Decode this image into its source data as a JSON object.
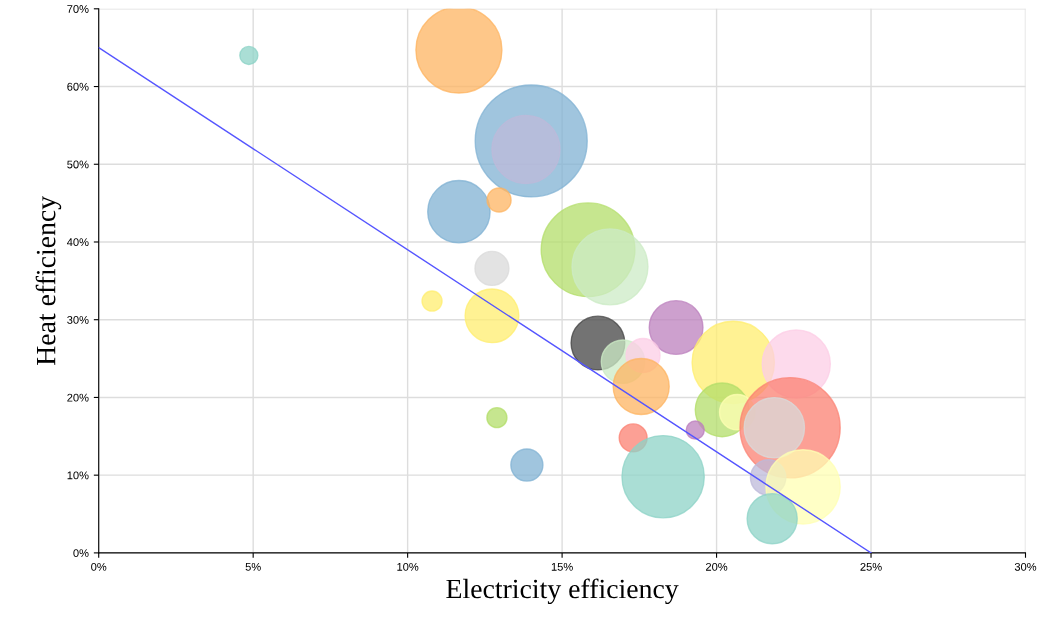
{
  "chart_data": {
    "type": "bubble",
    "xlabel": "Electricity efficiency",
    "ylabel": "Heat efficiency",
    "xlim": [
      0,
      30
    ],
    "ylim": [
      0,
      70
    ],
    "xticks": [
      {
        "value": 0,
        "label": "0%"
      },
      {
        "value": 5,
        "label": "5%"
      },
      {
        "value": 10,
        "label": "10%"
      },
      {
        "value": 15,
        "label": "15%"
      },
      {
        "value": 20,
        "label": "20%"
      },
      {
        "value": 25,
        "label": "25%"
      },
      {
        "value": 30,
        "label": "30%"
      }
    ],
    "yticks": [
      {
        "value": 0,
        "label": "0%"
      },
      {
        "value": 10,
        "label": "10%"
      },
      {
        "value": 20,
        "label": "20%"
      },
      {
        "value": 30,
        "label": "30%"
      },
      {
        "value": 40,
        "label": "40%"
      },
      {
        "value": 50,
        "label": "50%"
      },
      {
        "value": 60,
        "label": "60%"
      },
      {
        "value": 70,
        "label": "70%"
      }
    ],
    "grid": true,
    "legend": false,
    "series": [
      {
        "x": [
          4.86,
          11.66,
          14.0,
          13.83,
          11.66,
          12.96,
          15.84,
          16.55,
          12.73,
          10.79,
          12.73,
          16.16,
          18.69,
          20.54,
          22.58,
          16.97,
          17.62,
          17.56,
          20.18,
          20.67,
          22.38,
          21.87,
          12.89,
          17.3,
          19.31,
          13.86,
          18.27,
          21.67,
          22.8,
          21.8
        ],
        "values": [
          64.0,
          64.7,
          53.0,
          51.9,
          43.9,
          45.4,
          39.0,
          36.8,
          36.6,
          32.4,
          30.5,
          27.0,
          29.0,
          24.5,
          24.3,
          24.6,
          25.4,
          21.4,
          18.4,
          18.1,
          16.1,
          16.1,
          17.4,
          14.8,
          15.8,
          11.3,
          9.8,
          9.7,
          8.5,
          4.4
        ],
        "sizes": [
          0.026,
          0.59,
          1,
          0.37,
          0.31,
          0.046,
          0.7,
          0.46,
          0.092,
          0.032,
          0.23,
          0.23,
          0.23,
          0.54,
          0.37,
          0.15,
          0.092,
          0.25,
          0.23,
          0.1,
          0.8,
          0.29,
          0.032,
          0.062,
          0.026,
          0.082,
          0.54,
          0.1,
          0.44,
          0.2
        ],
        "colors": [
          "#8dd3c7",
          "#fdb462",
          "#80b1d3",
          "#bebada",
          "#80b1d3",
          "#fdb462",
          "#b3de69",
          "#ccebc5",
          "#d9d9d9",
          "#ffed6f",
          "#ffed6f",
          "#444444",
          "#bc80bd",
          "#ffed6f",
          "#fccde5",
          "#ccebc5",
          "#fccde5",
          "#fdb462",
          "#b3de69",
          "#ffffb3",
          "#fb8072",
          "#d9d9d9",
          "#b3de69",
          "#fb8072",
          "#bc80bd",
          "#80b1d3",
          "#8dd3c7",
          "#bebada",
          "#ffffb3",
          "#8dd3c7"
        ]
      },
      {
        "type": "line",
        "color": "#5555ff",
        "x": [
          0,
          25
        ],
        "values": [
          65,
          0
        ]
      }
    ]
  }
}
